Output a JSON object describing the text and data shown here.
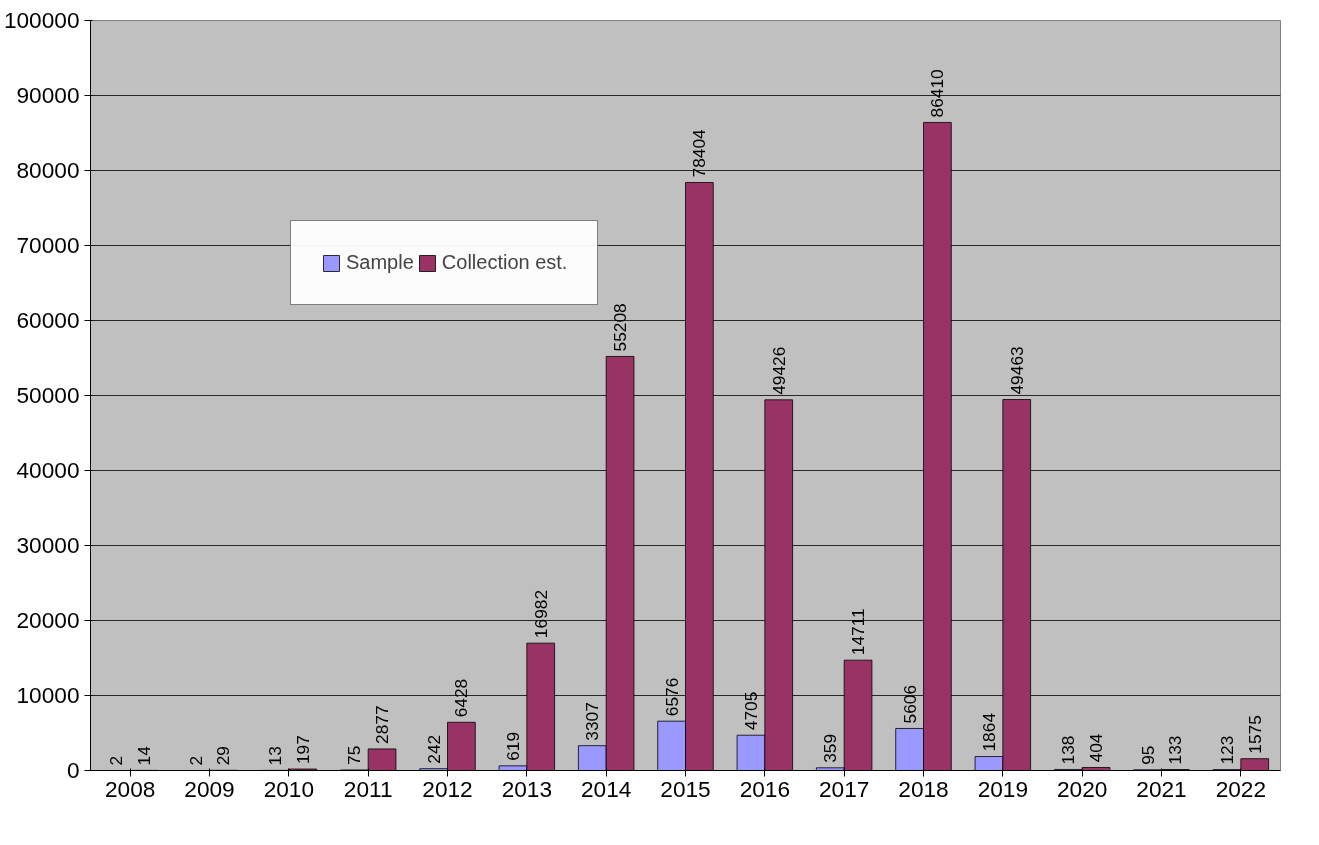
{
  "chart_data": {
    "type": "bar",
    "categories": [
      "2008",
      "2009",
      "2010",
      "2011",
      "2012",
      "2013",
      "2014",
      "2015",
      "2016",
      "2017",
      "2018",
      "2019",
      "2020",
      "2021",
      "2022"
    ],
    "series": [
      {
        "name": "Sample",
        "color": "#9999ff",
        "values": [
          2,
          2,
          13,
          75,
          242,
          619,
          3307,
          6576,
          4705,
          359,
          5606,
          1864,
          138,
          95,
          123
        ]
      },
      {
        "name": "Collection est.",
        "color": "#993366",
        "values": [
          14,
          29,
          197,
          2877,
          6428,
          16982,
          55208,
          78404,
          49426,
          14711,
          86410,
          49463,
          404,
          133,
          1575
        ]
      }
    ],
    "ylim": [
      0,
      100000
    ],
    "yticks": [
      0,
      10000,
      20000,
      30000,
      40000,
      50000,
      60000,
      70000,
      80000,
      90000,
      100000
    ],
    "grid": "y",
    "legend": "top left",
    "data_labels": true
  }
}
